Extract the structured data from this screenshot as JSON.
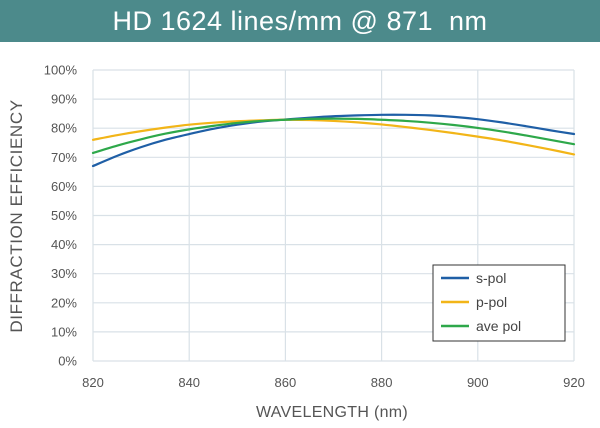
{
  "header": {
    "title": "HD 1624 lines/mm @ 871  nm"
  },
  "chart_data": {
    "type": "line",
    "title": "HD 1624 lines/mm @ 871  nm",
    "xlabel": "WAVELENGTH (nm)",
    "ylabel": "DIFFRACTION EFFICIENCY",
    "xlim": [
      820,
      920
    ],
    "ylim": [
      0,
      100
    ],
    "xticks": [
      820,
      840,
      860,
      880,
      900,
      920
    ],
    "yticks": [
      0,
      10,
      20,
      30,
      40,
      50,
      60,
      70,
      80,
      90,
      100
    ],
    "xtick_labels": [
      "820",
      "840",
      "860",
      "880",
      "900",
      "920"
    ],
    "ytick_labels": [
      "0%",
      "10%",
      "20%",
      "30%",
      "40%",
      "50%",
      "60%",
      "70%",
      "80%",
      "90%",
      "100%"
    ],
    "grid": true,
    "legend_position": "bottom-right",
    "series": [
      {
        "name": "s-pol",
        "color": "#1f5fa6",
        "x": [
          820,
          825,
          830,
          835,
          840,
          845,
          850,
          855,
          860,
          865,
          870,
          875,
          880,
          885,
          890,
          895,
          900,
          905,
          910,
          915,
          920
        ],
        "y": [
          67.0,
          70.5,
          73.5,
          76.0,
          78.0,
          79.8,
          81.2,
          82.3,
          83.0,
          83.6,
          84.1,
          84.4,
          84.6,
          84.6,
          84.4,
          83.9,
          83.1,
          82.0,
          80.7,
          79.3,
          78.0
        ]
      },
      {
        "name": "p-pol",
        "color": "#f2b518",
        "x": [
          820,
          825,
          830,
          835,
          840,
          845,
          850,
          855,
          860,
          865,
          870,
          875,
          880,
          885,
          890,
          895,
          900,
          905,
          910,
          915,
          920
        ],
        "y": [
          76.0,
          77.6,
          79.0,
          80.2,
          81.2,
          81.9,
          82.4,
          82.7,
          82.9,
          82.8,
          82.5,
          82.0,
          81.3,
          80.4,
          79.4,
          78.3,
          77.1,
          75.8,
          74.3,
          72.7,
          71.0
        ]
      },
      {
        "name": "ave pol",
        "color": "#2ea84a",
        "x": [
          820,
          825,
          830,
          835,
          840,
          845,
          850,
          855,
          860,
          865,
          870,
          875,
          880,
          885,
          890,
          895,
          900,
          905,
          910,
          915,
          920
        ],
        "y": [
          71.5,
          74.0,
          76.2,
          78.1,
          79.6,
          80.8,
          81.8,
          82.5,
          82.9,
          83.2,
          83.3,
          83.2,
          82.9,
          82.5,
          81.9,
          81.1,
          80.1,
          78.9,
          77.5,
          76.0,
          74.5
        ]
      }
    ]
  },
  "colors": {
    "banner": "#4c8a8b",
    "grid": "#d9e1e7",
    "text": "#555555"
  }
}
